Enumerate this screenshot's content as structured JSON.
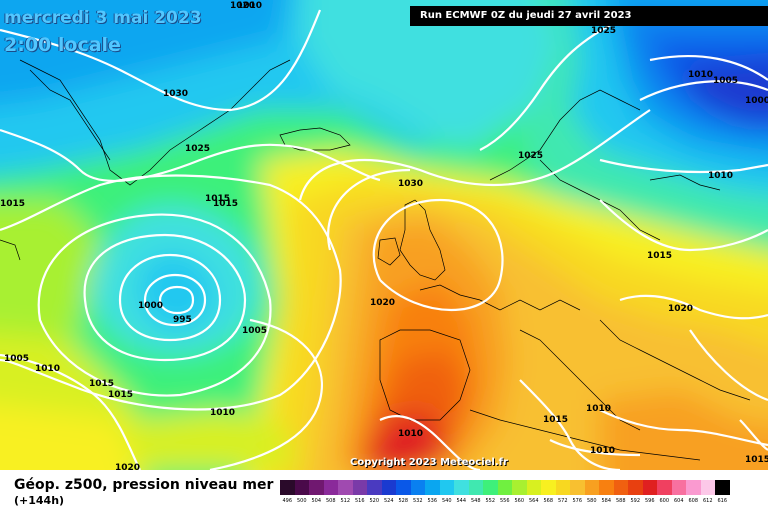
{
  "map": {
    "date_line_1": "mercredi 3 mai 2023",
    "date_line_2": "2:00 locale",
    "run_info": "Run ECMWF 0Z du jeudi 27 avril 2023",
    "copyright": "Copyright 2023 Meteociel.fr"
  },
  "footer": {
    "title": "Géop. z500, pression niveau mer",
    "subtitle": "(+144h)"
  },
  "isobar_labels": [
    "1030",
    "1025",
    "1025",
    "1025",
    "1020",
    "1015",
    "1015",
    "1005",
    "1000",
    "1030",
    "1020",
    "1015",
    "1010",
    "1010",
    "1000",
    "995",
    "1005",
    "1005",
    "1010",
    "1015",
    "1015",
    "1010",
    "1015",
    "1010",
    "1010",
    "1010",
    "1015",
    "1015",
    "1020",
    "1020",
    "1010"
  ],
  "color_scale": {
    "labels": [
      "496",
      "500",
      "504",
      "508",
      "512",
      "516",
      "520",
      "524",
      "528",
      "532",
      "536",
      "540",
      "544",
      "548",
      "552",
      "556",
      "560",
      "564",
      "568",
      "572",
      "576",
      "580",
      "584",
      "588",
      "592",
      "596",
      "600",
      "604",
      "608",
      "612",
      "616"
    ],
    "colors": [
      "#2a0a2a",
      "#4a0a4a",
      "#701870",
      "#8a2a9a",
      "#a04ab0",
      "#7a3aa8",
      "#4a3ac0",
      "#1a3ad0",
      "#0a58e8",
      "#0a80f0",
      "#0aa6f0",
      "#20c8f0",
      "#40e0e0",
      "#40e8b0",
      "#3ef07a",
      "#70f040",
      "#a8f030",
      "#d8f020",
      "#f8f020",
      "#f8d820",
      "#f8c030",
      "#f8a020",
      "#f88010",
      "#f06010",
      "#e84010",
      "#e02020",
      "#f04060",
      "#f870a0",
      "#fa9ad0",
      "#fcc8e8",
      "#000000"
    ]
  }
}
